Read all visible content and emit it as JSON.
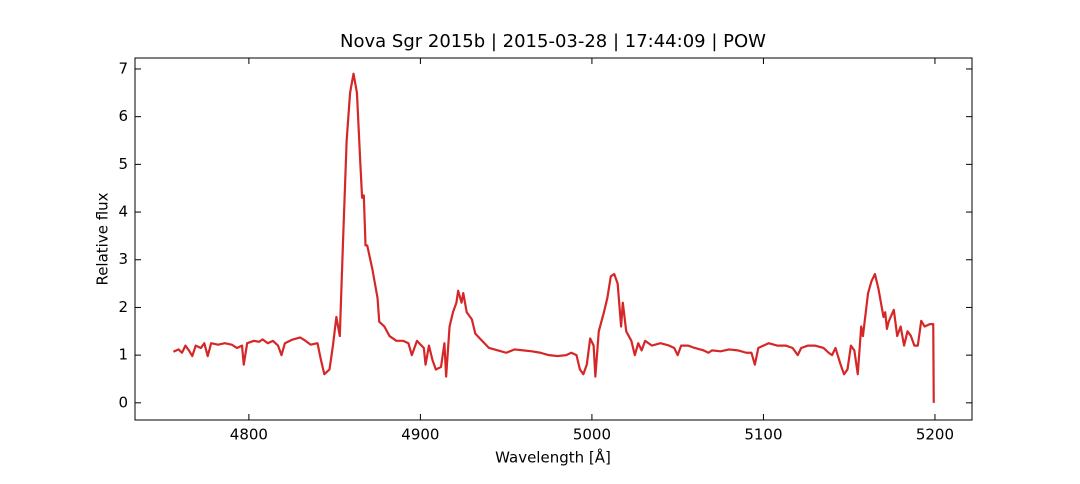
{
  "chart_data": {
    "type": "line",
    "title": "Nova Sgr 2015b | 2015-03-28 | 17:44:09 | POW",
    "xlabel": "Wavelength [Å]",
    "ylabel": "Relative flux",
    "color": "#d62728",
    "x": [
      4756,
      4759,
      4761,
      4763,
      4765,
      4767,
      4769,
      4772,
      4774,
      4776,
      4778,
      4782,
      4786,
      4790,
      4793,
      4796,
      4797,
      4799,
      4803,
      4806,
      4808,
      4811,
      4814,
      4817,
      4819,
      4821,
      4825,
      4830,
      4833,
      4836,
      4840,
      4842,
      4844,
      4847,
      4849,
      4851,
      4853,
      4855,
      4857,
      4859,
      4861,
      4863,
      4865,
      4866,
      4867,
      4868,
      4869,
      4872,
      4875,
      4876,
      4879,
      4882,
      4886,
      4890,
      4893,
      4895,
      4898,
      4902,
      4903,
      4905,
      4907,
      4909,
      4912,
      4914,
      4915,
      4917,
      4919,
      4921,
      4922,
      4924,
      4925,
      4927,
      4930,
      4932,
      4936,
      4940,
      4945,
      4950,
      4955,
      4960,
      4965,
      4970,
      4975,
      4980,
      4985,
      4988,
      4991,
      4993,
      4995,
      4997,
      4999,
      5001,
      5002,
      5004,
      5007,
      5009,
      5011,
      5013,
      5015,
      5017,
      5018,
      5020,
      5023,
      5025,
      5027,
      5029,
      5031,
      5035,
      5040,
      5045,
      5048,
      5050,
      5052,
      5056,
      5060,
      5065,
      5068,
      5070,
      5075,
      5080,
      5085,
      5090,
      5093,
      5095,
      5097,
      5100,
      5103,
      5108,
      5113,
      5117,
      5120,
      5122,
      5126,
      5130,
      5135,
      5138,
      5140,
      5142,
      5145,
      5147,
      5149,
      5151,
      5153,
      5155,
      5157,
      5158,
      5159,
      5161,
      5163,
      5165,
      5167,
      5169,
      5170,
      5171,
      5172,
      5173,
      5176,
      5178,
      5180,
      5182,
      5184,
      5186,
      5188,
      5190,
      5192,
      5194,
      5197,
      5199,
      5199.3
    ],
    "values": [
      1.07,
      1.12,
      1.05,
      1.2,
      1.1,
      0.98,
      1.2,
      1.15,
      1.25,
      0.98,
      1.25,
      1.22,
      1.25,
      1.22,
      1.15,
      1.2,
      0.8,
      1.25,
      1.3,
      1.28,
      1.33,
      1.25,
      1.3,
      1.2,
      1.0,
      1.25,
      1.32,
      1.37,
      1.3,
      1.22,
      1.25,
      0.9,
      0.6,
      0.7,
      1.2,
      1.8,
      1.4,
      3.5,
      5.5,
      6.5,
      6.9,
      6.5,
      5.0,
      4.3,
      4.35,
      3.3,
      3.3,
      2.8,
      2.2,
      1.7,
      1.6,
      1.4,
      1.3,
      1.3,
      1.25,
      1.0,
      1.3,
      1.15,
      0.8,
      1.2,
      0.9,
      0.7,
      0.75,
      1.25,
      0.55,
      1.6,
      1.9,
      2.1,
      2.35,
      2.1,
      2.3,
      1.9,
      1.75,
      1.45,
      1.3,
      1.15,
      1.1,
      1.05,
      1.12,
      1.1,
      1.08,
      1.05,
      1.0,
      0.98,
      1.0,
      1.05,
      1.0,
      0.7,
      0.6,
      0.8,
      1.35,
      1.2,
      0.55,
      1.5,
      1.9,
      2.2,
      2.65,
      2.7,
      2.5,
      1.6,
      2.1,
      1.5,
      1.3,
      1.0,
      1.25,
      1.1,
      1.3,
      1.2,
      1.25,
      1.2,
      1.15,
      1.0,
      1.2,
      1.2,
      1.15,
      1.1,
      1.05,
      1.1,
      1.08,
      1.12,
      1.1,
      1.05,
      1.05,
      0.8,
      1.15,
      1.2,
      1.25,
      1.2,
      1.2,
      1.15,
      1.0,
      1.15,
      1.2,
      1.2,
      1.15,
      1.05,
      1.0,
      1.15,
      0.8,
      0.6,
      0.7,
      1.2,
      1.1,
      0.6,
      1.6,
      1.4,
      1.7,
      2.3,
      2.55,
      2.7,
      2.4,
      2.0,
      1.8,
      1.9,
      1.55,
      1.7,
      1.95,
      1.4,
      1.6,
      1.2,
      1.5,
      1.4,
      1.2,
      1.2,
      1.72,
      1.6,
      1.65,
      1.65,
      0.0
    ],
    "xlim": [
      4733.6,
      5221.6
    ],
    "ylim": [
      -0.36,
      7.23
    ],
    "xticks": [
      4800,
      4900,
      5000,
      5100,
      5200
    ],
    "yticks": [
      0,
      1,
      2,
      3,
      4,
      5,
      6,
      7
    ]
  }
}
